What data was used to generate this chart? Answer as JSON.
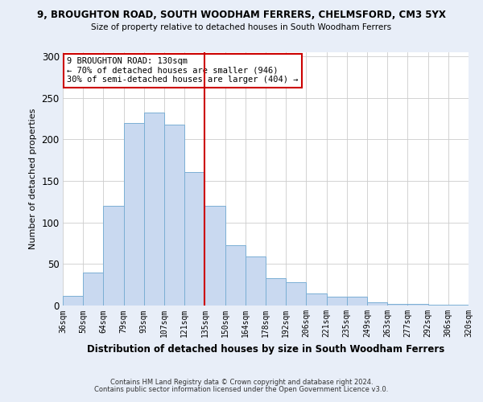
{
  "title1": "9, BROUGHTON ROAD, SOUTH WOODHAM FERRERS, CHELMSFORD, CM3 5YX",
  "title2": "Size of property relative to detached houses in South Woodham Ferrers",
  "xlabel": "Distribution of detached houses by size in South Woodham Ferrers",
  "ylabel": "Number of detached properties",
  "bin_labels": [
    "36sqm",
    "50sqm",
    "64sqm",
    "79sqm",
    "93sqm",
    "107sqm",
    "121sqm",
    "135sqm",
    "150sqm",
    "164sqm",
    "178sqm",
    "192sqm",
    "206sqm",
    "221sqm",
    "235sqm",
    "249sqm",
    "263sqm",
    "277sqm",
    "292sqm",
    "306sqm",
    "320sqm"
  ],
  "bar_heights": [
    12,
    40,
    120,
    220,
    232,
    218,
    161,
    120,
    73,
    59,
    33,
    28,
    15,
    11,
    11,
    4,
    2,
    2,
    1,
    1
  ],
  "bar_color": "#c9d9f0",
  "bar_edge_color": "#7bafd4",
  "vline_color": "#cc0000",
  "annotation_title": "9 BROUGHTON ROAD: 130sqm",
  "annotation_line1": "← 70% of detached houses are smaller (946)",
  "annotation_line2": "30% of semi-detached houses are larger (404) →",
  "annotation_box_edge": "#cc0000",
  "ylim": [
    0,
    305
  ],
  "yticks": [
    0,
    50,
    100,
    150,
    200,
    250,
    300
  ],
  "footnote1": "Contains HM Land Registry data © Crown copyright and database right 2024.",
  "footnote2": "Contains public sector information licensed under the Open Government Licence v3.0.",
  "bg_color": "#e8eef8",
  "plot_bg_color": "#ffffff"
}
